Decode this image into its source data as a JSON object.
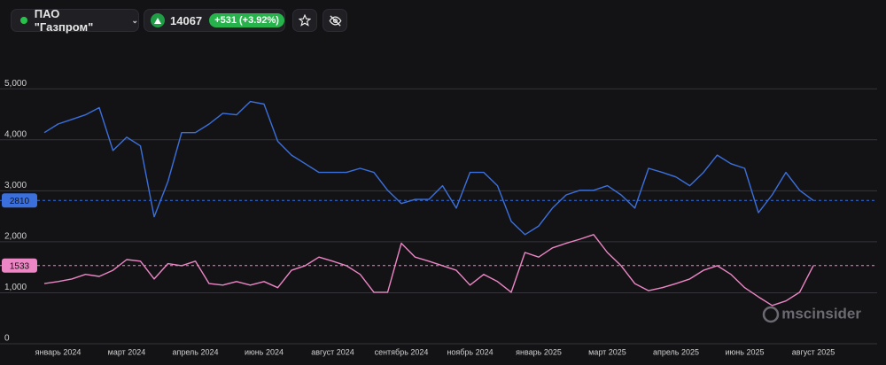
{
  "header": {
    "symbol": "ПАО \"Газпром\"",
    "price": "14067",
    "change": "+531 (+3.92%)"
  },
  "watermark": "mscinsider",
  "chart_data": {
    "type": "line",
    "categories": [
      null,
      "январь 2024",
      null,
      null,
      null,
      null,
      "март 2024",
      null,
      null,
      null,
      null,
      "апрель 2024",
      null,
      null,
      null,
      null,
      "июнь 2024",
      null,
      null,
      null,
      null,
      "август 2024",
      null,
      null,
      null,
      null,
      "сентябрь 2024",
      null,
      null,
      null,
      null,
      "ноябрь 2024",
      null,
      null,
      null,
      null,
      "январь 2025",
      null,
      null,
      null,
      null,
      "март 2025",
      null,
      null,
      null,
      null,
      "апрель 2025",
      null,
      null,
      null,
      null,
      "июнь 2025",
      null,
      null,
      null,
      null,
      "август 2025"
    ],
    "series": [
      {
        "color": "#3b70dc",
        "values": [
          4140,
          4310,
          4400,
          4490,
          4630,
          3790,
          4050,
          3880,
          2490,
          3180,
          4140,
          4140,
          4310,
          4520,
          4490,
          4750,
          4700,
          3970,
          3700,
          3530,
          3360,
          3360,
          3360,
          3440,
          3360,
          3010,
          2750,
          2830,
          2830,
          3100,
          2660,
          3360,
          3360,
          3100,
          2400,
          2140,
          2310,
          2660,
          2920,
          3010,
          3010,
          3100,
          2920,
          2660,
          3440,
          3360,
          3270,
          3100,
          3360,
          3700,
          3530,
          3440,
          2570,
          2920,
          3360,
          3010,
          2810
        ]
      },
      {
        "color": "#ec86c4",
        "values": [
          1180,
          1220,
          1270,
          1360,
          1320,
          1440,
          1650,
          1620,
          1270,
          1570,
          1530,
          1620,
          1180,
          1150,
          1220,
          1150,
          1220,
          1100,
          1440,
          1530,
          1700,
          1620,
          1530,
          1360,
          1010,
          1010,
          1970,
          1700,
          1620,
          1530,
          1440,
          1150,
          1360,
          1220,
          1010,
          1790,
          1700,
          1880,
          1970,
          2050,
          2140,
          1790,
          1530,
          1180,
          1040,
          1100,
          1180,
          1270,
          1440,
          1530,
          1360,
          1100,
          920,
          750,
          840,
          1010,
          1533
        ]
      }
    ],
    "ylim": [
      0,
      5960
    ],
    "yticks": [
      0,
      {
        "value": 1000,
        "label": "1,000"
      },
      {
        "value": 2000,
        "label": "2,000"
      },
      {
        "value": 3000,
        "label": "3,000"
      },
      {
        "value": 4000,
        "label": "4,000"
      },
      {
        "value": 5000,
        "label": "5,000"
      }
    ],
    "grid": true
  }
}
